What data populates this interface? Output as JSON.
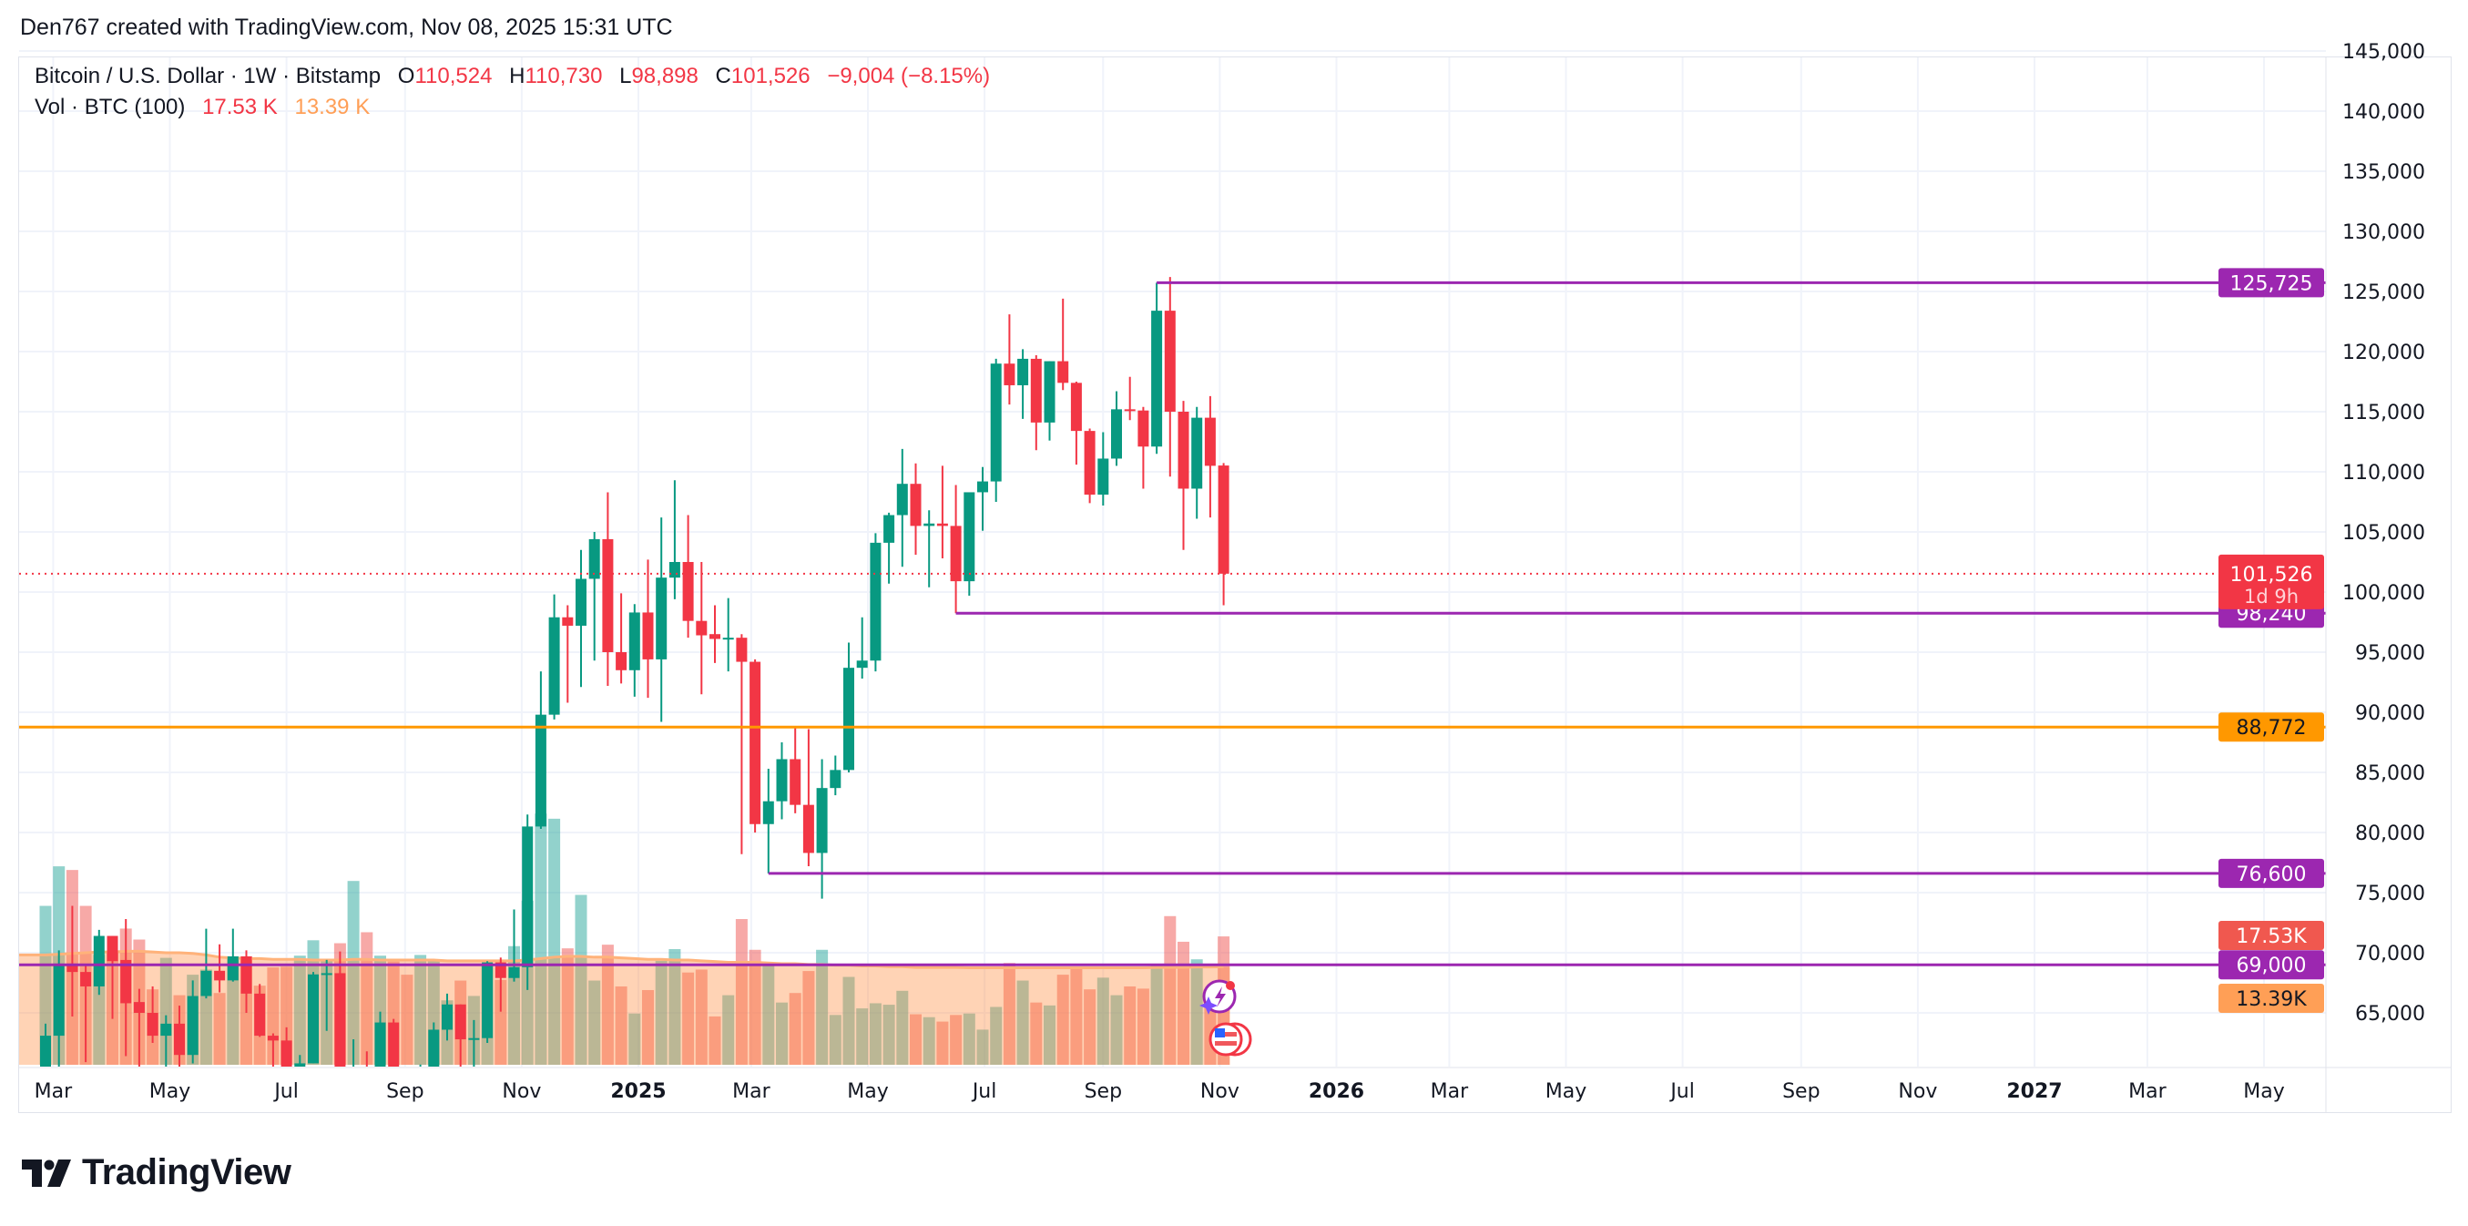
{
  "header": {
    "credit": "Den767 created with TradingView.com, Nov 08, 2025 15:31 UTC"
  },
  "legend": {
    "symbol": "Bitcoin / U.S. Dollar · 1W · Bitstamp",
    "o_label": "O",
    "o": "110,524",
    "h_label": "H",
    "h": "110,730",
    "l_label": "L",
    "l": "98,898",
    "c_label": "C",
    "c": "101,526",
    "change": "−9,004 (−8.15%)",
    "vol_title": "Vol · BTC (100)",
    "vol": "17.53 K",
    "vol_ma": "13.39 K"
  },
  "logo": {
    "text": "TradingView"
  },
  "colors": {
    "up": "#089981",
    "down": "#f23645",
    "purple": "#9c27b0",
    "orange": "#ff9800",
    "vol_up": "#26a69a",
    "vol_down": "#ef5350",
    "vol_ma": "#ff9f56"
  },
  "icons": [
    "lightning-sparkle-icon",
    "us-flag-icon"
  ],
  "chart_data": {
    "type": "candlestick",
    "interval": "1W",
    "ylim": [
      60600,
      146000
    ],
    "y_ticks": [
      "145,000",
      "140,000",
      "135,000",
      "130,000",
      "125,000",
      "120,000",
      "115,000",
      "110,000",
      "105,000",
      "100,000",
      "95,000",
      "90,000",
      "85,000",
      "80,000",
      "75,000",
      "70,000",
      "65,000"
    ],
    "x_ticks": [
      {
        "label": "Mar",
        "date": "2024-03-01",
        "bold": false
      },
      {
        "label": "May",
        "date": "2024-05-01",
        "bold": false
      },
      {
        "label": "Jul",
        "date": "2024-07-01",
        "bold": false
      },
      {
        "label": "Sep",
        "date": "2024-09-01",
        "bold": false
      },
      {
        "label": "Nov",
        "date": "2024-11-01",
        "bold": false
      },
      {
        "label": "2025",
        "date": "2025-01-01",
        "bold": true
      },
      {
        "label": "Mar",
        "date": "2025-03-01",
        "bold": false
      },
      {
        "label": "May",
        "date": "2025-05-01",
        "bold": false
      },
      {
        "label": "Jul",
        "date": "2025-07-01",
        "bold": false
      },
      {
        "label": "Sep",
        "date": "2025-09-01",
        "bold": false
      },
      {
        "label": "Nov",
        "date": "2025-11-01",
        "bold": false
      },
      {
        "label": "2026",
        "date": "2026-01-01",
        "bold": true
      },
      {
        "label": "Mar",
        "date": "2026-03-01",
        "bold": false
      },
      {
        "label": "May",
        "date": "2026-05-01",
        "bold": false
      },
      {
        "label": "Jul",
        "date": "2026-07-01",
        "bold": false
      },
      {
        "label": "Sep",
        "date": "2026-09-01",
        "bold": false
      },
      {
        "label": "Nov",
        "date": "2026-11-01",
        "bold": false
      },
      {
        "label": "2027",
        "date": "2027-01-01",
        "bold": true
      },
      {
        "label": "Mar",
        "date": "2027-03-01",
        "bold": false
      },
      {
        "label": "May",
        "date": "2027-05-01",
        "bold": false
      }
    ],
    "columns": [
      "date",
      "open",
      "high",
      "low",
      "close",
      "volume"
    ],
    "candles": [
      [
        "2024-02-26",
        51700,
        64100,
        50900,
        63100,
        21700
      ],
      [
        "2024-03-04",
        63100,
        70200,
        59200,
        69100,
        27100
      ],
      [
        "2024-03-11",
        69100,
        73900,
        64700,
        68400,
        26600
      ],
      [
        "2024-03-18",
        68400,
        68900,
        60900,
        67200,
        21700
      ],
      [
        "2024-03-25",
        67200,
        71900,
        66500,
        71400,
        15000
      ],
      [
        "2024-04-01",
        71400,
        71400,
        64500,
        69300,
        15500
      ],
      [
        "2024-04-08",
        69400,
        72800,
        61400,
        65800,
        18600
      ],
      [
        "2024-04-15",
        65900,
        67000,
        59700,
        65000,
        17100
      ],
      [
        "2024-04-22",
        65000,
        67200,
        62500,
        63100,
        10300
      ],
      [
        "2024-04-29",
        63100,
        64800,
        56500,
        64100,
        14600
      ],
      [
        "2024-05-06",
        64100,
        65600,
        60200,
        61500,
        9500
      ],
      [
        "2024-05-13",
        61500,
        67700,
        60800,
        66400,
        12300
      ],
      [
        "2024-05-20",
        66400,
        72000,
        66200,
        68500,
        13000
      ],
      [
        "2024-05-27",
        68500,
        70700,
        66700,
        67700,
        9800
      ],
      [
        "2024-06-03",
        67700,
        72000,
        67600,
        69700,
        14800
      ],
      [
        "2024-06-10",
        69700,
        70200,
        65000,
        66600,
        14800
      ],
      [
        "2024-06-17",
        66600,
        67400,
        63000,
        63100,
        10800
      ],
      [
        "2024-06-24",
        63100,
        63300,
        58400,
        62700,
        13300
      ],
      [
        "2024-07-01",
        62700,
        63800,
        53500,
        56500,
        13400
      ],
      [
        "2024-07-08",
        56500,
        61500,
        54300,
        60800,
        14900
      ],
      [
        "2024-07-15",
        60800,
        68400,
        60800,
        68200,
        17000
      ],
      [
        "2024-07-22",
        68200,
        69400,
        63500,
        68300,
        14400
      ],
      [
        "2024-07-29",
        68300,
        70100,
        57300,
        58100,
        16600
      ],
      [
        "2024-08-05",
        58100,
        62800,
        49000,
        58700,
        25100
      ],
      [
        "2024-08-12",
        58700,
        61800,
        56200,
        58400,
        18100
      ],
      [
        "2024-08-19",
        58400,
        65100,
        57800,
        64200,
        14900
      ],
      [
        "2024-08-26",
        64200,
        64500,
        57200,
        57300,
        14100
      ],
      [
        "2024-09-02",
        57300,
        58000,
        52500,
        54000,
        12300
      ],
      [
        "2024-09-09",
        54000,
        60700,
        53600,
        60000,
        15000
      ],
      [
        "2024-09-16",
        60000,
        64200,
        59000,
        63600,
        14200
      ],
      [
        "2024-09-23",
        63600,
        66600,
        62700,
        65700,
        8800
      ],
      [
        "2024-09-30",
        65700,
        65700,
        59800,
        62800,
        11500
      ],
      [
        "2024-10-07",
        62800,
        64400,
        58900,
        62900,
        9400
      ],
      [
        "2024-10-14",
        62900,
        69300,
        62500,
        69200,
        13800
      ],
      [
        "2024-10-21",
        69200,
        69600,
        65100,
        67900,
        11600
      ],
      [
        "2024-10-28",
        67900,
        73600,
        67600,
        68800,
        16200
      ],
      [
        "2024-11-04",
        68800,
        81500,
        66900,
        80500,
        22400
      ],
      [
        "2024-11-11",
        80500,
        93400,
        80300,
        89800,
        34300
      ],
      [
        "2024-11-18",
        89800,
        99800,
        89400,
        97900,
        33600
      ],
      [
        "2024-11-25",
        97900,
        98900,
        90800,
        97200,
        15900
      ],
      [
        "2024-12-02",
        97200,
        103500,
        92100,
        101100,
        23200
      ],
      [
        "2024-12-09",
        101100,
        105000,
        94300,
        104400,
        11500
      ],
      [
        "2024-12-16",
        104400,
        108300,
        92200,
        95000,
        16400
      ],
      [
        "2024-12-23",
        95000,
        99900,
        92400,
        93500,
        10700
      ],
      [
        "2024-12-30",
        93500,
        99000,
        91300,
        98300,
        7000
      ],
      [
        "2025-01-06",
        98300,
        102700,
        91200,
        94400,
        10200
      ],
      [
        "2025-01-13",
        94400,
        106200,
        89200,
        101200,
        14200
      ],
      [
        "2025-01-20",
        101200,
        109300,
        99400,
        102500,
        15800
      ],
      [
        "2025-01-27",
        102500,
        106400,
        96200,
        97600,
        12600
      ],
      [
        "2025-02-03",
        97600,
        102500,
        91500,
        96400,
        13000
      ],
      [
        "2025-02-10",
        96500,
        98900,
        94100,
        96100,
        6600
      ],
      [
        "2025-02-17",
        96100,
        99500,
        93400,
        96200,
        9500
      ],
      [
        "2025-02-24",
        96200,
        96500,
        78200,
        94200,
        19900
      ],
      [
        "2025-03-03",
        94200,
        94400,
        80000,
        80700,
        15700
      ],
      [
        "2025-03-10",
        80700,
        85300,
        76600,
        82600,
        13600
      ],
      [
        "2025-03-17",
        82600,
        87500,
        81100,
        86100,
        8500
      ],
      [
        "2025-03-24",
        86100,
        88800,
        81600,
        82300,
        9800
      ],
      [
        "2025-03-31",
        82300,
        88600,
        77200,
        78300,
        12800
      ],
      [
        "2025-04-07",
        78300,
        86100,
        74500,
        83700,
        15700
      ],
      [
        "2025-04-14",
        83700,
        86400,
        83100,
        85200,
        6800
      ],
      [
        "2025-04-21",
        85200,
        95800,
        85000,
        93700,
        12000
      ],
      [
        "2025-04-28",
        93700,
        97900,
        92800,
        94300,
        7700
      ],
      [
        "2025-05-05",
        94300,
        104900,
        93400,
        104100,
        8400
      ],
      [
        "2025-05-12",
        104100,
        106600,
        100700,
        106400,
        8200
      ],
      [
        "2025-05-19",
        106400,
        111900,
        102100,
        109000,
        10100
      ],
      [
        "2025-05-26",
        109000,
        110700,
        103100,
        105500,
        6900
      ],
      [
        "2025-06-02",
        105500,
        106800,
        100400,
        105700,
        6500
      ],
      [
        "2025-06-09",
        105700,
        110500,
        102800,
        105500,
        5900
      ],
      [
        "2025-06-16",
        105500,
        108900,
        98240,
        100900,
        6800
      ],
      [
        "2025-06-23",
        100900,
        108300,
        99700,
        108300,
        7000
      ],
      [
        "2025-06-30",
        108300,
        110400,
        105100,
        109200,
        4800
      ],
      [
        "2025-07-07",
        109200,
        119400,
        107500,
        119000,
        7900
      ],
      [
        "2025-07-14",
        119000,
        123100,
        115600,
        117200,
        13900
      ],
      [
        "2025-07-21",
        117200,
        120200,
        114400,
        119400,
        11500
      ],
      [
        "2025-07-28",
        119400,
        119700,
        111800,
        114100,
        8500
      ],
      [
        "2025-08-04",
        114100,
        119200,
        112600,
        119200,
        8100
      ],
      [
        "2025-08-11",
        119200,
        124400,
        116800,
        117400,
        12300
      ],
      [
        "2025-08-18",
        117400,
        117500,
        110600,
        113400,
        13200
      ],
      [
        "2025-08-25",
        113400,
        113600,
        107400,
        108100,
        10300
      ],
      [
        "2025-09-01",
        108100,
        113300,
        107200,
        111100,
        11900
      ],
      [
        "2025-09-08",
        111100,
        116700,
        110500,
        115200,
        9500
      ],
      [
        "2025-09-15",
        115200,
        117900,
        114300,
        115100,
        10700
      ],
      [
        "2025-09-22",
        115100,
        115400,
        108600,
        112100,
        10400
      ],
      [
        "2025-09-29",
        112100,
        125725,
        111500,
        123400,
        13500
      ],
      [
        "2025-10-06",
        123400,
        126200,
        109600,
        115000,
        20300
      ],
      [
        "2025-10-13",
        115000,
        115900,
        103500,
        108600,
        16800
      ],
      [
        "2025-10-20",
        108600,
        115400,
        106100,
        114500,
        14400
      ],
      [
        "2025-10-27",
        114500,
        116300,
        106200,
        110500,
        9000
      ],
      [
        "2025-11-03",
        110524,
        110730,
        98898,
        101526,
        17530
      ]
    ],
    "volume_ma_100": [
      15.0,
      15.1,
      15.2,
      15.3,
      15.4,
      15.4,
      15.5,
      15.5,
      15.4,
      15.3,
      15.3,
      15.2,
      15.0,
      14.7,
      14.6,
      14.5,
      14.5,
      14.4,
      14.4,
      14.4,
      14.3,
      14.3,
      14.3,
      14.4,
      14.4,
      14.3,
      14.3,
      14.3,
      14.3,
      14.3,
      14.2,
      14.2,
      14.2,
      14.2,
      14.2,
      14.2,
      14.3,
      14.5,
      14.7,
      14.8,
      14.8,
      14.7,
      14.7,
      14.6,
      14.5,
      14.4,
      14.4,
      14.3,
      14.3,
      14.2,
      14.1,
      14.0,
      14.0,
      14.0,
      13.9,
      13.8,
      13.8,
      13.7,
      13.7,
      13.6,
      13.6,
      13.5,
      13.5,
      13.4,
      13.4,
      13.3,
      13.3,
      13.3,
      13.3,
      13.25,
      13.25,
      13.25,
      13.25,
      13.25,
      13.25,
      13.25,
      13.25,
      13.25,
      13.25,
      13.25,
      13.25,
      13.25,
      13.25,
      13.3,
      13.3,
      13.3,
      13.35,
      13.35,
      13.39
    ],
    "volume_unit": "K",
    "last_price": {
      "value": 101526,
      "label": "101,526",
      "countdown": "1d 9h"
    },
    "levels": [
      {
        "price": 125725,
        "label": "125,725",
        "color": "#9c27b0",
        "from": "2025-09-29"
      },
      {
        "price": 98240,
        "label": "98,240",
        "color": "#9c27b0",
        "from": "2025-06-16"
      },
      {
        "price": 88772,
        "label": "88,772",
        "color": "#ff9800",
        "from": null
      },
      {
        "price": 76600,
        "label": "76,600",
        "color": "#9c27b0",
        "from": "2025-03-10"
      },
      {
        "price": 69000,
        "label": "69,000",
        "color": "#9c27b0",
        "from": null
      }
    ],
    "volume_labels": {
      "last": "17.53K",
      "ma": "13.39K"
    }
  }
}
